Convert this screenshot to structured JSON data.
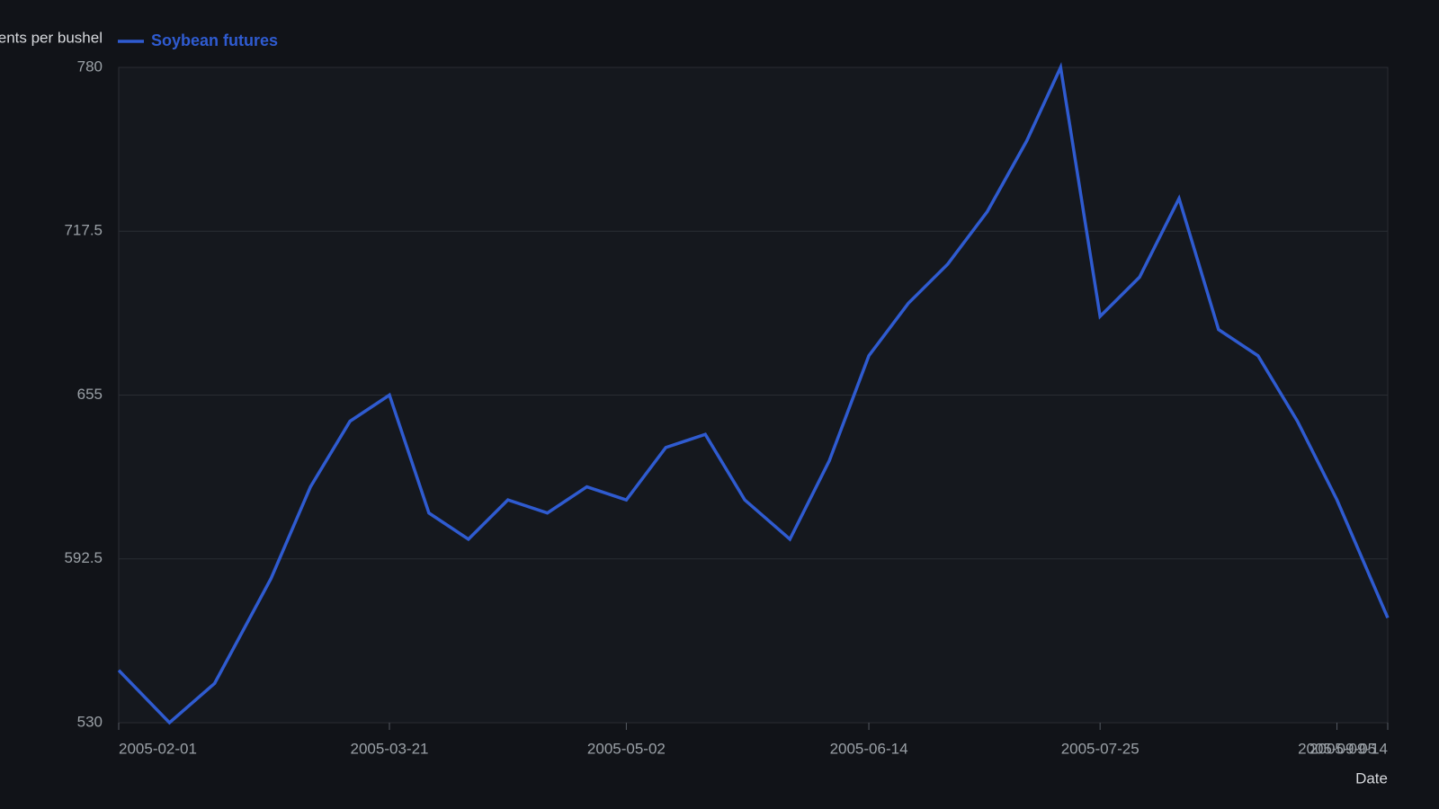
{
  "chart_data": {
    "type": "line",
    "y_label": "Cents per bushel",
    "x_label": "Date",
    "x": [
      "2005-02-01",
      "2005-02-10",
      "2005-02-18",
      "2005-02-28",
      "2005-03-07",
      "2005-03-14",
      "2005-03-21",
      "2005-03-28",
      "2005-04-04",
      "2005-04-11",
      "2005-04-18",
      "2005-04-25",
      "2005-05-02",
      "2005-05-09",
      "2005-05-16",
      "2005-05-23",
      "2005-05-31",
      "2005-06-07",
      "2005-06-14",
      "2005-06-21",
      "2005-06-28",
      "2005-07-05",
      "2005-07-12",
      "2005-07-18",
      "2005-07-25",
      "2005-08-01",
      "2005-08-08",
      "2005-08-15",
      "2005-08-22",
      "2005-08-29",
      "2005-09-05",
      "2005-09-14"
    ],
    "series": [
      {
        "name": "Soybean futures",
        "color": "#2f5bd0",
        "values": [
          550,
          530,
          545,
          585,
          620,
          645,
          655,
          610,
          600,
          615,
          610,
          620,
          615,
          635,
          640,
          615,
          600,
          630,
          670,
          690,
          705,
          725,
          752,
          780,
          685,
          700,
          730,
          680,
          670,
          645,
          615,
          570
        ]
      }
    ],
    "xlim": [
      "2005-02-01",
      "2005-09-14"
    ],
    "xticks": [
      "2005-02-01",
      "2005-03-21",
      "2005-05-02",
      "2005-06-14",
      "2005-07-25",
      "2005-09-05",
      "2005-09-14"
    ],
    "ylim": [
      530,
      780
    ],
    "yticks": [
      530,
      592.5,
      655,
      717.5,
      780
    ],
    "grid": true
  }
}
